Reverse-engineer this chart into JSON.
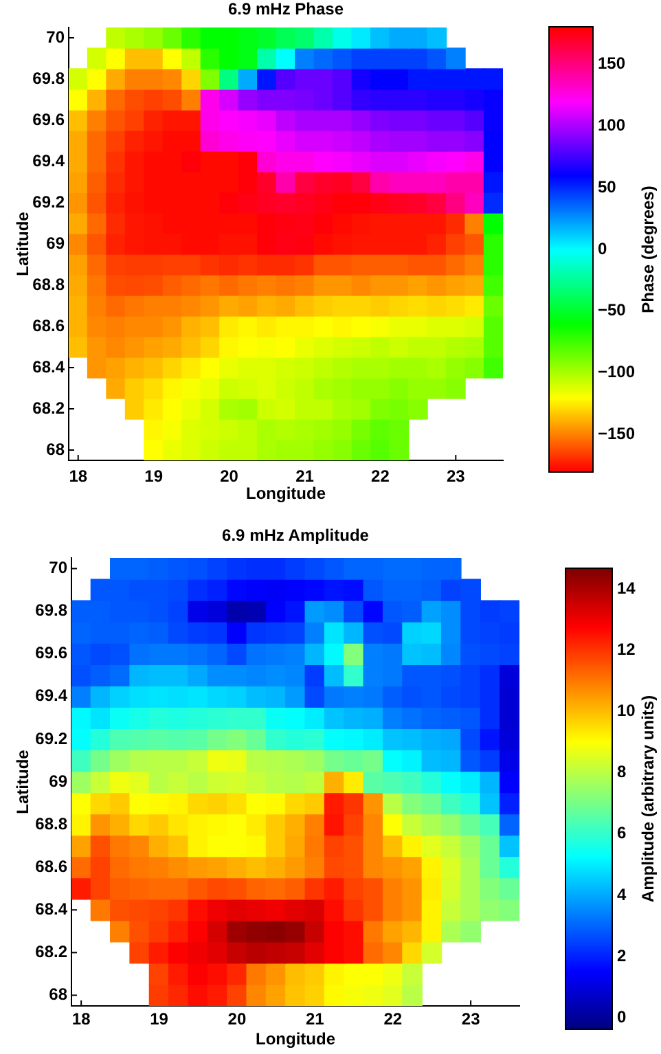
{
  "chart_data": [
    {
      "type": "heatmap",
      "title": "6.9 mHz Phase",
      "xlabel": "Longitude",
      "ylabel": "Latitude",
      "clabel": "Phase (degrees)",
      "categories": [
        "18",
        null,
        null,
        null,
        "19",
        null,
        null,
        null,
        "20",
        null,
        null,
        null,
        "21",
        null,
        null,
        null,
        "22",
        null,
        null,
        null,
        "23",
        null,
        null
      ],
      "y_categories": [
        "70",
        null,
        "69.8",
        null,
        "69.6",
        null,
        "69.4",
        null,
        "69.2",
        null,
        "69",
        null,
        "68.8",
        null,
        "68.6",
        null,
        "68.4",
        null,
        "68.2",
        null,
        "68"
      ],
      "clim": [
        -180,
        180
      ],
      "cticks": [
        {
          "value": -150,
          "label": "−150"
        },
        {
          "value": -100,
          "label": "−100"
        },
        {
          "value": -50,
          "label": "−50"
        },
        0,
        50,
        100,
        150
      ],
      "cells": [
        [
          null,
          null,
          -105,
          -100,
          -95,
          -85,
          -70,
          -60,
          -60,
          -55,
          -50,
          -40,
          -35,
          -20,
          -5,
          5,
          15,
          20,
          20,
          15,
          null,
          null,
          null
        ],
        [
          null,
          -110,
          -120,
          -135,
          -135,
          -120,
          -105,
          -70,
          -60,
          -55,
          -20,
          0,
          30,
          35,
          40,
          45,
          45,
          45,
          45,
          40,
          30,
          null,
          null
        ],
        [
          -110,
          -120,
          -140,
          -150,
          -150,
          -148,
          -130,
          -90,
          -30,
          20,
          55,
          80,
          85,
          85,
          80,
          65,
          60,
          60,
          55,
          55,
          55,
          55,
          55
        ],
        [
          -120,
          -138,
          -155,
          -162,
          -165,
          -162,
          -150,
          125,
          110,
          95,
          90,
          90,
          88,
          85,
          80,
          72,
          70,
          70,
          70,
          68,
          68,
          65,
          62
        ],
        [
          -135,
          -150,
          -160,
          -165,
          -172,
          -175,
          -175,
          125,
          120,
          118,
          115,
          105,
          100,
          100,
          100,
          95,
          90,
          88,
          88,
          85,
          85,
          80,
          62
        ],
        [
          -140,
          -155,
          -165,
          -172,
          -175,
          -178,
          -178,
          130,
          125,
          122,
          120,
          115,
          110,
          110,
          108,
          105,
          100,
          98,
          98,
          95,
          95,
          92,
          60
        ],
        [
          -140,
          -155,
          -168,
          -175,
          -178,
          -178,
          178,
          -178,
          -178,
          178,
          130,
          125,
          125,
          120,
          118,
          115,
          112,
          112,
          115,
          118,
          120,
          125,
          60
        ],
        [
          -142,
          -158,
          -170,
          -175,
          -178,
          -178,
          -178,
          -178,
          -178,
          178,
          170,
          140,
          165,
          170,
          172,
          165,
          140,
          135,
          135,
          135,
          140,
          140,
          55
        ],
        [
          -145,
          -160,
          -172,
          -176,
          -178,
          -178,
          -178,
          -178,
          178,
          175,
          172,
          170,
          172,
          175,
          178,
          178,
          175,
          172,
          170,
          165,
          150,
          135,
          50
        ],
        [
          -140,
          -155,
          -170,
          -175,
          -176,
          -178,
          -178,
          -178,
          -178,
          -178,
          178,
          176,
          175,
          178,
          -178,
          -176,
          -175,
          -175,
          -175,
          -175,
          -170,
          -150,
          -60
        ],
        [
          -148,
          -160,
          -172,
          -175,
          -176,
          -176,
          -178,
          -178,
          -176,
          -176,
          178,
          175,
          176,
          -178,
          -176,
          -175,
          -175,
          -175,
          -175,
          -172,
          -165,
          -160,
          -70
        ],
        [
          -142,
          -155,
          -165,
          -166,
          -166,
          -165,
          -165,
          -168,
          -170,
          -168,
          -170,
          -170,
          -168,
          -160,
          -160,
          -158,
          -158,
          -158,
          -160,
          -160,
          -155,
          -150,
          -70
        ],
        [
          -140,
          -152,
          -162,
          -163,
          -162,
          -158,
          -155,
          -152,
          -155,
          -152,
          -150,
          -152,
          -150,
          -145,
          -145,
          -148,
          -145,
          -145,
          -142,
          -145,
          -142,
          -140,
          -75
        ],
        [
          -138,
          -150,
          -155,
          -152,
          -150,
          -150,
          -148,
          -145,
          -140,
          -142,
          -138,
          -140,
          -135,
          -132,
          -130,
          -130,
          -132,
          -130,
          -128,
          -130,
          -128,
          -125,
          -85
        ],
        [
          -138,
          -148,
          -150,
          -148,
          -148,
          -145,
          -138,
          -135,
          -125,
          -122,
          -125,
          -122,
          -122,
          -120,
          -122,
          -120,
          -118,
          -115,
          -115,
          -112,
          -112,
          -110,
          -80
        ],
        [
          -135,
          -145,
          -148,
          -145,
          -142,
          -140,
          -135,
          -130,
          -122,
          -120,
          -118,
          -120,
          -115,
          -112,
          -110,
          -108,
          -105,
          -108,
          -105,
          -105,
          -102,
          -100,
          -80
        ],
        [
          null,
          -145,
          -142,
          -138,
          -135,
          -130,
          -125,
          -120,
          -115,
          -112,
          -112,
          -110,
          -108,
          -105,
          -102,
          -100,
          -100,
          -98,
          -98,
          -100,
          -95,
          -92,
          -75
        ],
        [
          null,
          null,
          -140,
          -132,
          -128,
          -122,
          -118,
          -115,
          -108,
          -110,
          -112,
          -108,
          -105,
          -100,
          -98,
          -95,
          -95,
          -92,
          -95,
          -95,
          -92,
          null,
          null
        ],
        [
          null,
          null,
          null,
          -132,
          -125,
          -120,
          -115,
          -110,
          -100,
          -98,
          -108,
          -110,
          -105,
          -105,
          -100,
          -98,
          -90,
          -88,
          -92,
          null,
          null,
          null,
          null
        ],
        [
          null,
          null,
          null,
          null,
          -122,
          -118,
          -112,
          -110,
          -108,
          -105,
          -100,
          -102,
          -100,
          -98,
          -95,
          -88,
          -82,
          -85,
          null,
          null,
          null,
          null,
          null
        ],
        [
          null,
          null,
          null,
          null,
          -120,
          -115,
          -112,
          -108,
          -105,
          -105,
          -100,
          -98,
          -98,
          -95,
          -92,
          -85,
          -80,
          -85,
          null,
          null,
          null,
          null,
          null
        ]
      ]
    },
    {
      "type": "heatmap",
      "title": "6.9 mHz Amplitude",
      "xlabel": "Longitude",
      "ylabel": "Latitude",
      "clabel": "Amplitude (arbitrary units)",
      "categories": [
        "18",
        null,
        null,
        null,
        "19",
        null,
        null,
        null,
        "20",
        null,
        null,
        null,
        "21",
        null,
        null,
        null,
        "22",
        null,
        null,
        null,
        "23",
        null,
        null
      ],
      "y_categories": [
        "70",
        null,
        "69.8",
        null,
        "69.6",
        null,
        "69.4",
        null,
        "69.2",
        null,
        "69",
        null,
        "68.8",
        null,
        "68.6",
        null,
        "68.4",
        null,
        "68.2",
        null,
        "68"
      ],
      "clim": [
        -0.35,
        14.65
      ],
      "cticks": [
        0,
        2,
        4,
        6,
        8,
        10,
        12,
        14
      ],
      "cells": [
        [
          null,
          null,
          3.0,
          3.0,
          2.9,
          2.8,
          2.7,
          2.5,
          2.3,
          2.2,
          2.2,
          2.4,
          2.6,
          2.8,
          3.0,
          3.0,
          3.1,
          3.1,
          3.0,
          3.0,
          null,
          null,
          null
        ],
        [
          null,
          2.8,
          2.8,
          2.7,
          2.7,
          2.6,
          2.2,
          2.0,
          1.6,
          1.5,
          1.4,
          1.5,
          1.6,
          1.8,
          1.7,
          2.8,
          3.0,
          3.0,
          2.9,
          2.5,
          2.6,
          null,
          null
        ],
        [
          2.9,
          2.9,
          2.8,
          2.8,
          2.7,
          2.5,
          1.2,
          1.0,
          0.3,
          0.4,
          1.5,
          1.8,
          3.8,
          3.6,
          2.6,
          1.6,
          2.8,
          2.9,
          3.9,
          3.6,
          2.6,
          2.4,
          2.5
        ],
        [
          3.0,
          2.9,
          2.9,
          3.0,
          2.9,
          2.6,
          2.4,
          2.3,
          1.5,
          2.3,
          2.4,
          2.5,
          3.4,
          4.9,
          4.2,
          2.7,
          2.6,
          4.6,
          4.7,
          3.6,
          2.6,
          2.5,
          2.4
        ],
        [
          2.8,
          2.6,
          2.7,
          3.2,
          3.3,
          3.3,
          3.2,
          3.0,
          2.6,
          3.2,
          3.3,
          3.4,
          4.2,
          5.2,
          7.2,
          3.4,
          3.3,
          4.4,
          4.3,
          3.5,
          2.7,
          2.6,
          2.5
        ],
        [
          2.7,
          2.9,
          3.1,
          4.2,
          4.3,
          4.3,
          4.0,
          3.6,
          3.6,
          3.5,
          3.6,
          3.5,
          2.4,
          4.3,
          6.0,
          3.4,
          3.3,
          2.8,
          2.8,
          2.7,
          2.5,
          2.2,
          1.0
        ],
        [
          3.4,
          4.2,
          4.6,
          4.8,
          4.9,
          4.8,
          4.9,
          4.7,
          4.6,
          4.3,
          4.2,
          3.8,
          2.6,
          3.3,
          3.4,
          3.3,
          2.9,
          2.7,
          2.8,
          2.6,
          2.5,
          2.2,
          0.9
        ],
        [
          5.2,
          4.9,
          5.4,
          5.6,
          5.8,
          5.7,
          5.8,
          5.9,
          6.0,
          6.0,
          5.4,
          5.3,
          5.0,
          4.4,
          4.2,
          4.1,
          3.4,
          3.2,
          3.0,
          2.9,
          2.8,
          2.2,
          0.9
        ],
        [
          5.3,
          5.8,
          6.4,
          6.5,
          6.6,
          6.5,
          6.6,
          7.0,
          7.2,
          6.8,
          6.0,
          5.8,
          5.9,
          5.3,
          5.2,
          5.0,
          4.4,
          4.3,
          4.1,
          4.0,
          2.6,
          1.8,
          1.0
        ],
        [
          6.2,
          7.0,
          7.6,
          7.9,
          8.0,
          8.0,
          8.2,
          8.8,
          8.7,
          8.0,
          7.9,
          7.8,
          7.6,
          7.0,
          6.8,
          7.0,
          5.3,
          5.1,
          4.3,
          4.2,
          2.8,
          2.4,
          1.2
        ],
        [
          7.6,
          8.2,
          8.8,
          8.6,
          8.0,
          8.2,
          8.0,
          8.3,
          8.4,
          8.2,
          8.0,
          7.9,
          8.1,
          10.2,
          9.3,
          6.6,
          6.4,
          6.2,
          5.8,
          5.3,
          5.0,
          4.2,
          1.5
        ],
        [
          9.0,
          9.6,
          9.8,
          9.0,
          9.1,
          9.2,
          9.6,
          9.7,
          9.5,
          9.0,
          9.1,
          9.6,
          9.8,
          12.4,
          12.0,
          10.6,
          8.0,
          7.2,
          6.9,
          6.2,
          5.8,
          4.4,
          2.0
        ],
        [
          9.2,
          10.6,
          10.2,
          9.6,
          9.8,
          9.4,
          9.2,
          9.1,
          9.0,
          9.3,
          9.8,
          10.2,
          10.9,
          12.5,
          11.8,
          10.8,
          9.0,
          8.2,
          7.8,
          7.4,
          6.8,
          6.3,
          3.0
        ],
        [
          10.4,
          11.6,
          11.0,
          10.8,
          10.2,
          9.9,
          9.2,
          9.0,
          9.0,
          9.1,
          9.8,
          10.3,
          11.0,
          11.8,
          11.6,
          10.8,
          10.0,
          9.2,
          8.6,
          8.2,
          7.6,
          6.8,
          4.4
        ],
        [
          11.2,
          11.8,
          11.2,
          11.0,
          10.9,
          10.7,
          10.5,
          10.4,
          10.2,
          10.0,
          10.2,
          10.5,
          10.9,
          11.7,
          11.6,
          10.8,
          10.6,
          10.4,
          9.2,
          8.5,
          7.8,
          6.8,
          5.8
        ],
        [
          12.4,
          11.8,
          11.4,
          11.3,
          11.2,
          11.2,
          11.5,
          11.7,
          11.6,
          11.3,
          11.2,
          11.4,
          12.0,
          12.4,
          11.8,
          11.6,
          10.9,
          10.6,
          9.3,
          8.4,
          7.8,
          7.2,
          6.8
        ],
        [
          null,
          11.0,
          11.6,
          11.7,
          11.8,
          12.0,
          12.6,
          13.0,
          13.2,
          13.1,
          13.0,
          13.2,
          13.3,
          12.6,
          12.0,
          11.6,
          10.9,
          10.6,
          9.2,
          8.2,
          7.8,
          7.4,
          7.2
        ],
        [
          null,
          null,
          10.9,
          11.6,
          11.9,
          12.3,
          12.8,
          13.4,
          14.2,
          14.4,
          14.5,
          14.3,
          13.6,
          12.8,
          12.6,
          11.0,
          10.4,
          10.1,
          9.2,
          7.8,
          7.4,
          null,
          null
        ],
        [
          null,
          null,
          null,
          11.8,
          12.4,
          12.8,
          13.0,
          13.2,
          13.6,
          13.8,
          13.7,
          13.6,
          13.2,
          12.8,
          12.6,
          11.2,
          10.8,
          9.6,
          8.4,
          null,
          null,
          null,
          null
        ],
        [
          null,
          null,
          null,
          null,
          11.8,
          12.4,
          12.8,
          12.6,
          12.2,
          11.0,
          10.6,
          10.0,
          9.8,
          9.2,
          9.0,
          9.0,
          8.8,
          8.2,
          null,
          null,
          null,
          null,
          null
        ],
        [
          null,
          null,
          null,
          null,
          11.9,
          12.2,
          12.6,
          12.4,
          11.8,
          10.8,
          10.4,
          9.9,
          9.7,
          9.1,
          8.9,
          8.8,
          8.6,
          8.0,
          null,
          null,
          null,
          null,
          null
        ]
      ]
    }
  ]
}
